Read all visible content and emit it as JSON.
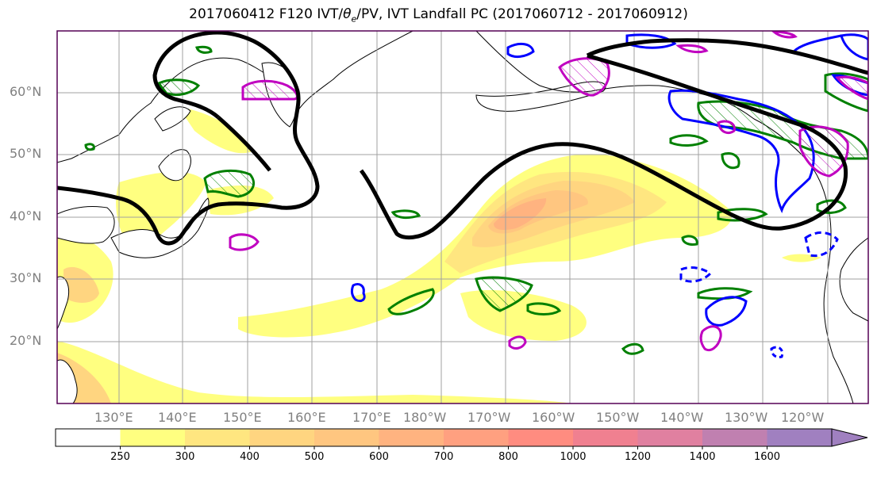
{
  "title": {
    "prefix": "2017060412 F120 IVT/",
    "theta": "θ",
    "theta_sub": "e",
    "suffix": "/PV, IVT Landfall PC (2017060712 - 2017060912)"
  },
  "lat_labels": [
    "60°N",
    "50°N",
    "40°N",
    "30°N",
    "20°N"
  ],
  "lon_labels": [
    "130°E",
    "140°E",
    "150°E",
    "160°E",
    "170°E",
    "180°W",
    "170°W",
    "160°W",
    "150°W",
    "140°W",
    "130°W",
    "120°W"
  ],
  "colorbar": {
    "ticks": [
      "250",
      "300",
      "400",
      "500",
      "600",
      "700",
      "800",
      "1000",
      "1200",
      "1400",
      "1600"
    ],
    "colors": [
      "#ffffff",
      "#ffff80",
      "#ffe680",
      "#ffd580",
      "#ffc680",
      "#ffb380",
      "#ffa080",
      "#ff8c80",
      "#f08090",
      "#e080a0",
      "#c080b0",
      "#a080c0"
    ],
    "extend": "max"
  },
  "legend_colors": {
    "landfall_contour": "#000000",
    "theta_e": "#008000",
    "pv_positive": "#0000ff",
    "pv_hatch": "#c000c0",
    "grid": "#a0a0a0",
    "frame": "#550055"
  }
}
